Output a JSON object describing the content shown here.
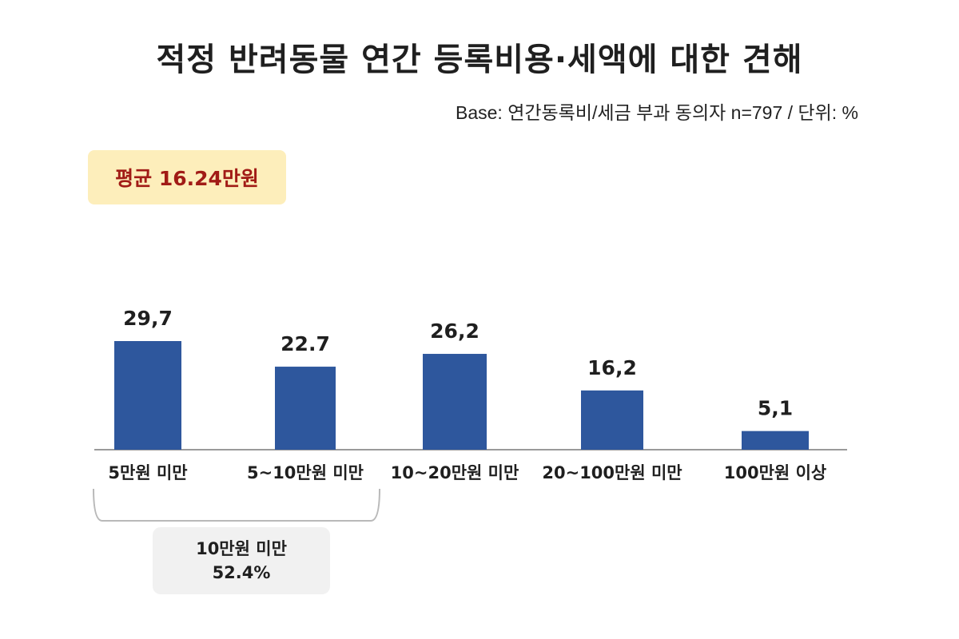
{
  "title": "적정 반려동물 연간 등록비용·세액에 대한 견해",
  "base_note": "Base: 연간동록비/세금 부과 동의자 n=797 / 단위: %",
  "average": "평균 16.24만원",
  "group_summary": {
    "label": "10만원 미만",
    "value": "52.4%"
  },
  "chart_data": {
    "type": "bar",
    "title": "적정 반려동물 연간 등록비용·세액에 대한 견해",
    "categories": [
      "5만원 미만",
      "5~10만원 미만",
      "10~20만원 미만",
      "20~100만원 미만",
      "100만원 이상"
    ],
    "values": [
      29.7,
      22.7,
      26.2,
      16.2,
      5.1
    ],
    "value_labels": [
      "29,7",
      "22.7",
      "26,2",
      "16,2",
      "5,1"
    ],
    "xlabel": "",
    "ylabel": "",
    "grid": false,
    "bar_color": "#2e579d"
  }
}
